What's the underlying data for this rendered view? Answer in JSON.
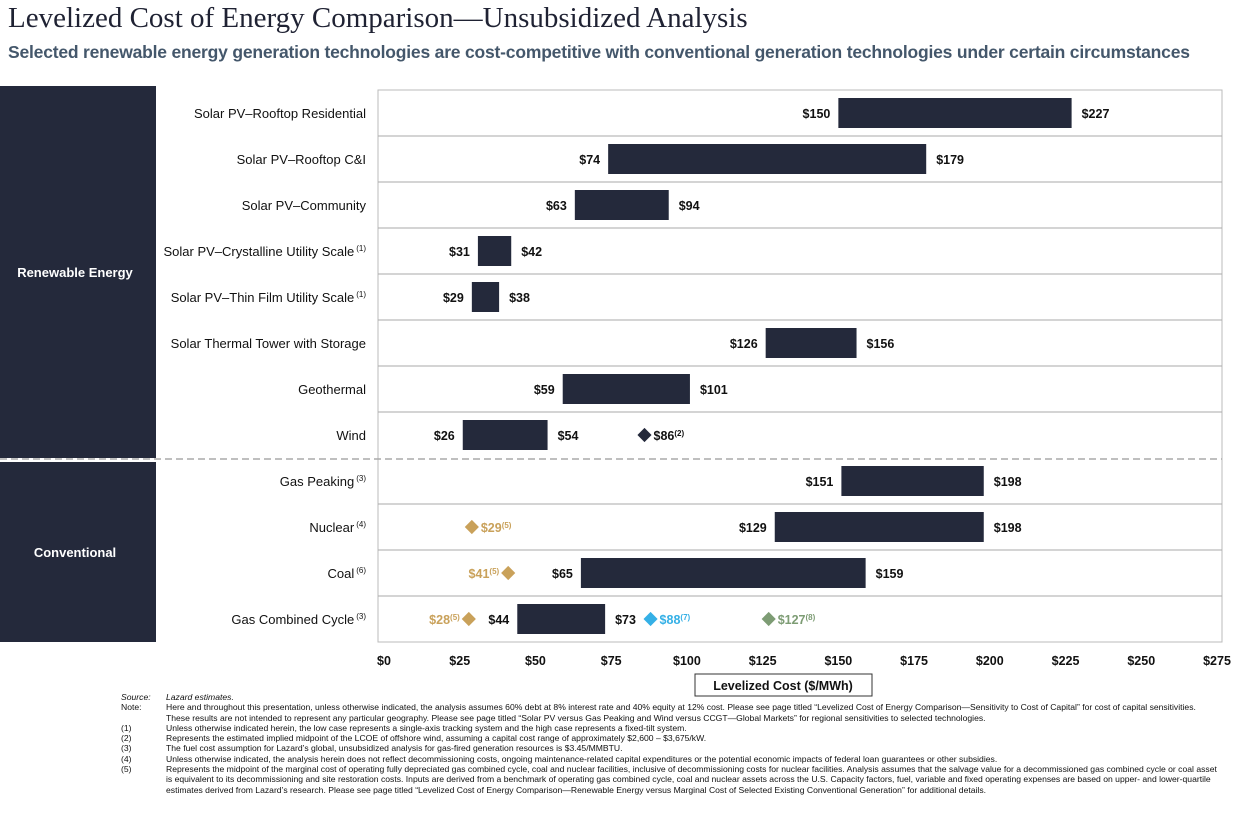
{
  "header": {
    "title": "Levelized Cost of Energy Comparison—Unsubsidized Analysis",
    "subtitle": "Selected renewable energy generation technologies are cost-competitive with conventional generation technologies under certain circumstances"
  },
  "colors": {
    "bar": "#24293b",
    "panel": "#24293b",
    "marginal_cost_marker": "#c9a15a",
    "marker_blue": "#35b0e6",
    "marker_green": "#7d9c74",
    "offshore_wind_marker": "#24293b"
  },
  "chart_data": {
    "type": "bar",
    "orientation": "horizontal-range",
    "xlabel": "Levelized Cost ($/MWh)",
    "xlim": [
      0,
      275
    ],
    "xticks": [
      0,
      25,
      50,
      75,
      100,
      125,
      150,
      175,
      200,
      225,
      250,
      275
    ],
    "xtick_labels": [
      "$0",
      "$25",
      "$50",
      "$75",
      "$100",
      "$125",
      "$150",
      "$175",
      "$200",
      "$225",
      "$250",
      "$275"
    ],
    "grid": "horizontal row separators",
    "groups": [
      {
        "name": "Renewable Energy",
        "rows": [
          0,
          1,
          2,
          3,
          4,
          5,
          6,
          7
        ]
      },
      {
        "name": "Conventional",
        "rows": [
          8,
          9,
          10,
          11
        ]
      }
    ],
    "rows": [
      {
        "name": "Solar PV–Rooftop Residential",
        "note": "",
        "low": 150,
        "high": 227,
        "low_label": "$150",
        "high_label": "$227",
        "markers": []
      },
      {
        "name": "Solar PV–Rooftop C&I",
        "note": "",
        "low": 74,
        "high": 179,
        "low_label": "$74",
        "high_label": "$179",
        "markers": []
      },
      {
        "name": "Solar PV–Community",
        "note": "",
        "low": 63,
        "high": 94,
        "low_label": "$63",
        "high_label": "$94",
        "markers": []
      },
      {
        "name": "Solar PV–Crystalline Utility Scale",
        "note": "(1)",
        "low": 31,
        "high": 42,
        "low_label": "$31",
        "high_label": "$42",
        "markers": []
      },
      {
        "name": "Solar PV–Thin Film Utility Scale",
        "note": "(1)",
        "low": 29,
        "high": 38,
        "low_label": "$29",
        "high_label": "$38",
        "markers": []
      },
      {
        "name": "Solar Thermal Tower with Storage",
        "note": "",
        "low": 126,
        "high": 156,
        "low_label": "$126",
        "high_label": "$156",
        "markers": []
      },
      {
        "name": "Geothermal",
        "note": "",
        "low": 59,
        "high": 101,
        "low_label": "$59",
        "high_label": "$101",
        "markers": []
      },
      {
        "name": "Wind",
        "note": "",
        "low": 26,
        "high": 54,
        "low_label": "$26",
        "high_label": "$54",
        "markers": [
          {
            "value": 86,
            "label": "$86",
            "sup": "(2)",
            "color": "offshore_wind_marker",
            "label_side": "right"
          }
        ]
      },
      {
        "name": "Gas Peaking",
        "note": "(3)",
        "low": 151,
        "high": 198,
        "low_label": "$151",
        "high_label": "$198",
        "markers": []
      },
      {
        "name": "Nuclear",
        "note": "(4)",
        "low": 129,
        "high": 198,
        "low_label": "$129",
        "high_label": "$198",
        "markers": [
          {
            "value": 29,
            "label": "$29",
            "sup": "(5)",
            "color": "marginal_cost_marker",
            "label_side": "right"
          }
        ]
      },
      {
        "name": "Coal",
        "note": "(6)",
        "low": 65,
        "high": 159,
        "low_label": "$65",
        "high_label": "$159",
        "markers": [
          {
            "value": 41,
            "label": "$41",
            "sup": "(5)",
            "color": "marginal_cost_marker",
            "label_side": "left"
          }
        ]
      },
      {
        "name": "Gas Combined Cycle",
        "note": "(3)",
        "low": 44,
        "high": 73,
        "low_label": "$44",
        "high_label": "$73",
        "markers": [
          {
            "value": 28,
            "label": "$28",
            "sup": "(5)",
            "color": "marginal_cost_marker",
            "label_side": "left"
          },
          {
            "value": 88,
            "label": "$88",
            "sup": "(7)",
            "color": "marker_blue",
            "label_side": "right"
          },
          {
            "value": 127,
            "label": "$127",
            "sup": "(8)",
            "color": "marker_green",
            "label_side": "right"
          }
        ]
      }
    ]
  },
  "footnotes": [
    {
      "label": "Source:",
      "text": "Lazard estimates.",
      "italic": true
    },
    {
      "label": "Note:",
      "text": "Here and throughout this presentation, unless otherwise indicated, the analysis assumes 60% debt at 8% interest rate and 40% equity at 12% cost. Please see page titled “Levelized Cost of Energy Comparison—Sensitivity to Cost of Capital” for cost of capital sensitivities. These results are not intended to represent any particular geography. Please see page titled “Solar PV versus Gas Peaking and Wind versus CCGT—Global Markets” for regional sensitivities to selected technologies."
    },
    {
      "label": "(1)",
      "text": "Unless otherwise indicated herein, the low case represents a single-axis tracking system and the high case represents a fixed-tilt system."
    },
    {
      "label": "(2)",
      "text": "Represents the estimated implied midpoint of the LCOE of offshore wind, assuming a capital cost range of approximately $2,600 – $3,675/kW."
    },
    {
      "label": "(3)",
      "text": "The fuel cost assumption for Lazard’s global, unsubsidized analysis for gas-fired generation resources is $3.45/MMBTU."
    },
    {
      "label": "(4)",
      "text": "Unless otherwise indicated, the analysis herein does not reflect decommissioning costs, ongoing maintenance-related capital expenditures or the potential economic impacts of federal loan guarantees or other subsidies."
    },
    {
      "label": "(5)",
      "text": "Represents the midpoint of the marginal cost of operating fully depreciated gas combined cycle, coal and nuclear facilities, inclusive of decommissioning costs for nuclear facilities. Analysis assumes that the salvage value for a decommissioned gas combined cycle or coal asset is equivalent to its decommissioning and site restoration costs. Inputs are derived from a benchmark of operating gas combined cycle, coal and nuclear assets across the U.S. Capacity factors, fuel, variable and fixed operating expenses are based on upper- and lower-quartile estimates derived from Lazard’s research. Please see page titled “Levelized Cost of Energy Comparison—Renewable Energy versus Marginal Cost of Selected Existing Conventional Generation” for additional details."
    }
  ]
}
